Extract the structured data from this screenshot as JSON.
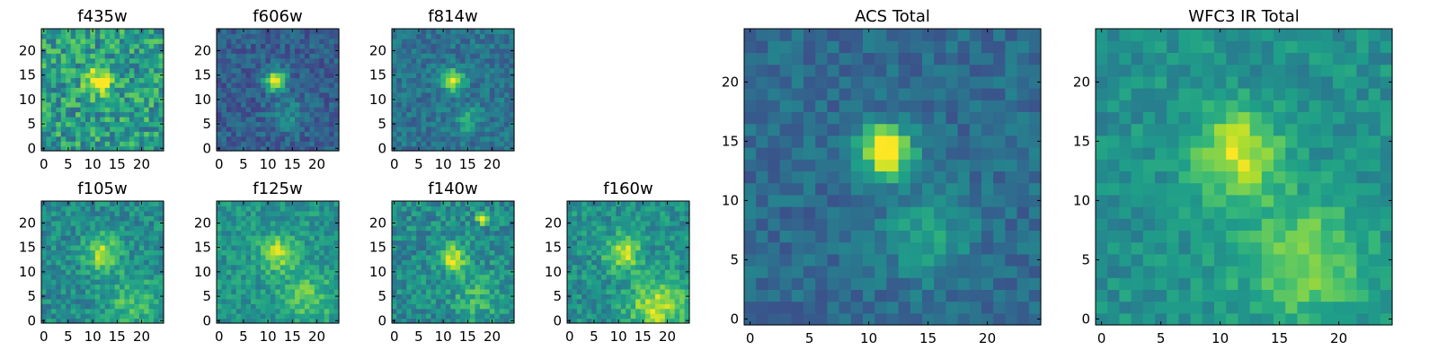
{
  "chart_data": [
    {
      "type": "heatmap",
      "title": "f435w",
      "x_ticks": [
        0,
        5,
        10,
        15,
        20
      ],
      "y_ticks": [
        0,
        5,
        10,
        15,
        20
      ],
      "xlim": [
        0,
        24
      ],
      "ylim": [
        0,
        24
      ],
      "grid": false,
      "colormap": "viridis",
      "seed": 11,
      "background": 0.55,
      "noise": 0.22,
      "blobs": [
        {
          "x": 11.5,
          "y": 14,
          "s": 2.0,
          "a": 0.5
        }
      ]
    },
    {
      "type": "heatmap",
      "title": "f606w",
      "x_ticks": [
        0,
        5,
        10,
        15,
        20
      ],
      "y_ticks": [
        0,
        5,
        10,
        15,
        20
      ],
      "xlim": [
        0,
        24
      ],
      "ylim": [
        0,
        24
      ],
      "grid": false,
      "colormap": "viridis",
      "seed": 23,
      "background": 0.3,
      "noise": 0.12,
      "blobs": [
        {
          "x": 11.5,
          "y": 14,
          "s": 1.5,
          "a": 0.7
        },
        {
          "x": 14,
          "y": 7,
          "s": 2.5,
          "a": 0.18
        }
      ]
    },
    {
      "type": "heatmap",
      "title": "f814w",
      "x_ticks": [
        0,
        5,
        10,
        15,
        20
      ],
      "y_ticks": [
        0,
        5,
        10,
        15,
        20
      ],
      "xlim": [
        0,
        24
      ],
      "ylim": [
        0,
        24
      ],
      "grid": false,
      "colormap": "viridis",
      "seed": 37,
      "background": 0.38,
      "noise": 0.12,
      "blobs": [
        {
          "x": 12,
          "y": 14,
          "s": 1.5,
          "a": 0.6
        },
        {
          "x": 15,
          "y": 6,
          "s": 2.0,
          "a": 0.22
        }
      ]
    },
    {
      "type": "heatmap",
      "title": "f105w",
      "x_ticks": [
        0,
        5,
        10,
        15,
        20
      ],
      "y_ticks": [
        0,
        5,
        10,
        15,
        20
      ],
      "xlim": [
        0,
        24
      ],
      "ylim": [
        0,
        24
      ],
      "grid": false,
      "colormap": "viridis",
      "seed": 41,
      "background": 0.48,
      "noise": 0.14,
      "blobs": [
        {
          "x": 12,
          "y": 14,
          "s": 2.5,
          "a": 0.4
        },
        {
          "x": 18,
          "y": 4,
          "s": 4.0,
          "a": 0.2
        }
      ]
    },
    {
      "type": "heatmap",
      "title": "f125w",
      "x_ticks": [
        0,
        5,
        10,
        15,
        20
      ],
      "y_ticks": [
        0,
        5,
        10,
        15,
        20
      ],
      "xlim": [
        0,
        24
      ],
      "ylim": [
        0,
        24
      ],
      "grid": false,
      "colormap": "viridis",
      "seed": 53,
      "background": 0.52,
      "noise": 0.13,
      "blobs": [
        {
          "x": 12,
          "y": 14,
          "s": 2.5,
          "a": 0.35
        },
        {
          "x": 18,
          "y": 5,
          "s": 4.0,
          "a": 0.2
        }
      ]
    },
    {
      "type": "heatmap",
      "title": "f140w",
      "x_ticks": [
        0,
        5,
        10,
        15,
        20
      ],
      "y_ticks": [
        0,
        5,
        10,
        15,
        20
      ],
      "xlim": [
        0,
        24
      ],
      "ylim": [
        0,
        24
      ],
      "grid": false,
      "colormap": "viridis",
      "seed": 67,
      "background": 0.48,
      "noise": 0.15,
      "blobs": [
        {
          "x": 12,
          "y": 13,
          "s": 2.0,
          "a": 0.45
        },
        {
          "x": 18,
          "y": 21,
          "s": 0.8,
          "a": 0.5
        },
        {
          "x": 17,
          "y": 5,
          "s": 3.5,
          "a": 0.18
        }
      ]
    },
    {
      "type": "heatmap",
      "title": "f160w",
      "x_ticks": [
        0,
        5,
        10,
        15,
        20
      ],
      "y_ticks": [
        0,
        5,
        10,
        15,
        20
      ],
      "xlim": [
        0,
        24
      ],
      "ylim": [
        0,
        24
      ],
      "grid": false,
      "colormap": "viridis",
      "seed": 79,
      "background": 0.5,
      "noise": 0.14,
      "blobs": [
        {
          "x": 11,
          "y": 14,
          "s": 2.5,
          "a": 0.4
        },
        {
          "x": 18,
          "y": 3,
          "s": 4.0,
          "a": 0.4
        }
      ]
    },
    {
      "type": "heatmap",
      "title": "ACS Total",
      "x_ticks": [
        0,
        5,
        10,
        15,
        20
      ],
      "y_ticks": [
        0,
        5,
        10,
        15,
        20
      ],
      "xlim": [
        0,
        24
      ],
      "ylim": [
        0,
        24
      ],
      "grid": false,
      "colormap": "viridis",
      "seed": 97,
      "background": 0.35,
      "noise": 0.1,
      "blobs": [
        {
          "x": 11.5,
          "y": 14.2,
          "s": 1.5,
          "a": 0.75
        },
        {
          "x": 15,
          "y": 7,
          "s": 2.5,
          "a": 0.22
        }
      ]
    },
    {
      "type": "heatmap",
      "title": "WFC3 IR Total",
      "x_ticks": [
        0,
        5,
        10,
        15,
        20
      ],
      "y_ticks": [
        0,
        5,
        10,
        15,
        20
      ],
      "xlim": [
        0,
        24
      ],
      "ylim": [
        0,
        24
      ],
      "grid": false,
      "colormap": "viridis",
      "seed": 101,
      "background": 0.5,
      "noise": 0.1,
      "blobs": [
        {
          "x": 11.5,
          "y": 14,
          "s": 2.5,
          "a": 0.45
        },
        {
          "x": 17,
          "y": 5,
          "s": 4.0,
          "a": 0.28
        }
      ]
    }
  ]
}
